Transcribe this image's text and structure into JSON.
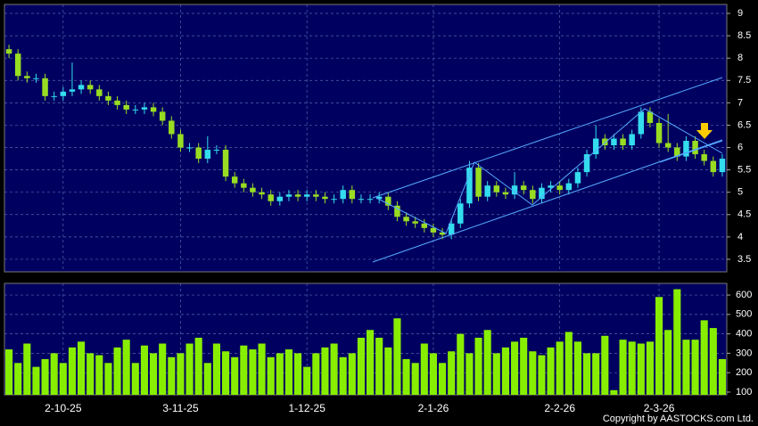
{
  "chart_data": {
    "type": "candlestick",
    "categories": [
      null,
      null,
      null,
      null,
      null,
      null,
      "2-10-25",
      null,
      null,
      null,
      null,
      null,
      null,
      null,
      null,
      null,
      null,
      null,
      null,
      "3-11-25",
      null,
      null,
      null,
      null,
      null,
      null,
      null,
      null,
      null,
      null,
      null,
      null,
      null,
      "1-12-25",
      null,
      null,
      null,
      null,
      null,
      null,
      null,
      null,
      null,
      null,
      null,
      null,
      null,
      "2-1-26",
      null,
      null,
      null,
      null,
      null,
      null,
      null,
      null,
      null,
      null,
      null,
      null,
      null,
      "2-2-26",
      null,
      null,
      null,
      null,
      null,
      null,
      null,
      null,
      null,
      null,
      "2-3-26",
      null,
      null,
      null,
      null,
      null,
      null,
      null
    ],
    "open": [
      8.2,
      8.1,
      7.6,
      7.55,
      7.55,
      7.15,
      7.15,
      7.25,
      7.3,
      7.4,
      7.3,
      7.15,
      7.05,
      6.95,
      6.85,
      6.85,
      6.9,
      6.8,
      6.6,
      6.3,
      6.0,
      6.0,
      5.75,
      5.95,
      5.95,
      5.35,
      5.2,
      5.1,
      5.0,
      4.95,
      4.8,
      4.9,
      4.95,
      4.9,
      4.95,
      4.9,
      4.85,
      4.85,
      5.05,
      4.85,
      4.85,
      4.85,
      4.9,
      4.7,
      4.45,
      4.35,
      4.3,
      4.2,
      4.1,
      4.05,
      4.3,
      4.75,
      5.55,
      4.9,
      5.15,
      5.0,
      4.95,
      5.15,
      5.05,
      4.85,
      5.1,
      5.15,
      5.05,
      5.2,
      5.45,
      5.85,
      6.2,
      6.05,
      6.2,
      6.05,
      6.3,
      6.8,
      6.55,
      6.1,
      6.0,
      5.8,
      6.15,
      5.85,
      5.7,
      5.45
    ],
    "high": [
      8.3,
      8.2,
      7.7,
      7.65,
      7.65,
      7.25,
      7.35,
      7.9,
      7.5,
      7.5,
      7.4,
      7.25,
      7.15,
      7.05,
      6.95,
      7.0,
      7.0,
      6.9,
      6.7,
      6.4,
      6.1,
      6.1,
      6.25,
      6.05,
      6.05,
      5.45,
      5.3,
      5.2,
      5.1,
      5.05,
      5.0,
      5.05,
      5.05,
      5.05,
      5.05,
      5.0,
      4.95,
      5.15,
      5.15,
      4.95,
      4.95,
      5.0,
      5.0,
      4.8,
      4.55,
      4.45,
      4.4,
      4.3,
      4.2,
      4.4,
      4.85,
      5.7,
      5.65,
      5.25,
      5.25,
      5.1,
      5.45,
      5.25,
      5.15,
      5.2,
      5.25,
      5.25,
      5.3,
      5.55,
      5.95,
      6.5,
      6.3,
      6.3,
      6.3,
      6.4,
      6.9,
      6.9,
      6.65,
      6.75,
      6.1,
      6.25,
      6.25,
      5.95,
      5.8,
      5.85
    ],
    "low": [
      8.0,
      7.5,
      7.45,
      7.45,
      7.05,
      7.05,
      7.05,
      7.15,
      7.2,
      7.2,
      7.05,
      6.95,
      6.85,
      6.75,
      6.75,
      6.75,
      6.7,
      6.5,
      6.2,
      5.9,
      5.9,
      5.65,
      5.65,
      5.85,
      5.25,
      5.1,
      5.0,
      4.9,
      4.85,
      4.7,
      4.7,
      4.8,
      4.8,
      4.8,
      4.8,
      4.75,
      4.75,
      4.75,
      4.75,
      4.75,
      4.75,
      4.75,
      4.6,
      4.35,
      4.25,
      4.2,
      4.1,
      4.0,
      3.95,
      3.95,
      4.2,
      4.65,
      4.8,
      4.8,
      4.9,
      4.85,
      4.85,
      4.95,
      4.75,
      4.75,
      5.0,
      4.95,
      4.95,
      5.1,
      5.35,
      5.75,
      5.95,
      5.95,
      5.95,
      5.95,
      6.2,
      6.45,
      6.0,
      5.9,
      5.7,
      5.7,
      5.75,
      5.6,
      5.35,
      5.35
    ],
    "close": [
      8.1,
      7.6,
      7.55,
      7.55,
      7.15,
      7.15,
      7.25,
      7.3,
      7.4,
      7.3,
      7.15,
      7.05,
      6.95,
      6.85,
      6.85,
      6.9,
      6.8,
      6.6,
      6.3,
      6.0,
      6.0,
      5.75,
      5.95,
      5.95,
      5.35,
      5.2,
      5.1,
      5.0,
      4.95,
      4.8,
      4.9,
      4.95,
      4.9,
      4.95,
      4.9,
      4.85,
      4.85,
      5.05,
      4.85,
      4.85,
      4.85,
      4.9,
      4.7,
      4.45,
      4.35,
      4.3,
      4.2,
      4.1,
      4.05,
      4.3,
      4.75,
      5.55,
      4.9,
      5.15,
      5.0,
      4.95,
      5.15,
      5.05,
      4.85,
      5.1,
      5.15,
      5.05,
      5.2,
      5.45,
      5.85,
      6.2,
      6.05,
      6.2,
      6.05,
      6.3,
      6.8,
      6.55,
      6.1,
      6.0,
      5.8,
      6.15,
      5.85,
      5.7,
      5.45,
      5.75
    ],
    "volume": [
      320,
      250,
      350,
      230,
      270,
      300,
      250,
      330,
      360,
      300,
      290,
      250,
      330,
      370,
      250,
      340,
      300,
      350,
      280,
      300,
      350,
      380,
      250,
      350,
      310,
      280,
      340,
      320,
      350,
      280,
      300,
      320,
      300,
      230,
      300,
      330,
      350,
      280,
      300,
      380,
      420,
      380,
      330,
      480,
      270,
      250,
      350,
      300,
      250,
      310,
      400,
      300,
      380,
      420,
      300,
      330,
      360,
      380,
      310,
      290,
      330,
      360,
      410,
      360,
      300,
      300,
      390,
      110,
      370,
      360,
      350,
      360,
      590,
      420,
      630,
      370,
      370,
      470,
      430,
      270
    ],
    "up_color": "#33ddee",
    "down_color": "#99dd22",
    "volume_color": "#88ee00",
    "ylim": [
      3.22,
      9.2
    ],
    "yticks": [
      3.5,
      4,
      4.5,
      5,
      5.5,
      6,
      6.5,
      7,
      7.5,
      8,
      8.5,
      9
    ],
    "vlim": [
      86,
      660
    ],
    "vticks": [
      100,
      200,
      300,
      400,
      500,
      600
    ],
    "grid": true,
    "copyright": "Copyright by AASTOCKS.com Ltd."
  }
}
